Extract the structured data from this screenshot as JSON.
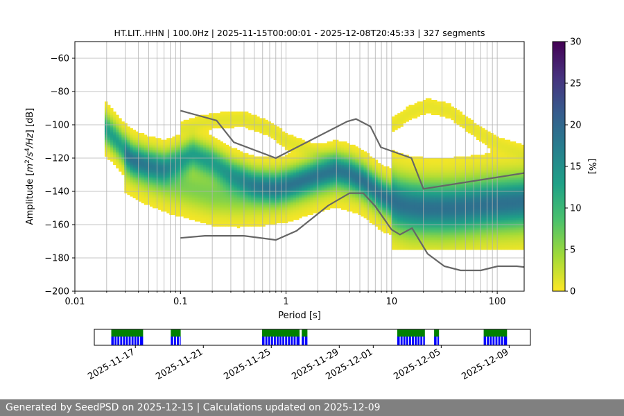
{
  "chart_data": [
    {
      "type": "heatmap",
      "title": "HT.LIT..HHN | 100.0Hz | 2025-11-15T00:00:01 - 2025-12-08T20:45:33 | 327 segments",
      "xlabel": "Period [s]",
      "ylabel_parts": [
        "Amplitude [",
        "m",
        "2",
        "/s",
        "4",
        "/Hz",
        "] [dB]"
      ],
      "x_scale": "log",
      "xlim": [
        0.01,
        180
      ],
      "ylim": [
        -200,
        -50
      ],
      "x_ticks": [
        {
          "value": 0.01,
          "label": "0.01"
        },
        {
          "value": 0.1,
          "label": "0.1"
        },
        {
          "value": 1,
          "label": "1"
        },
        {
          "value": 10,
          "label": "10"
        },
        {
          "value": 100,
          "label": "100"
        }
      ],
      "y_ticks": [
        {
          "value": -60,
          "label": "−60"
        },
        {
          "value": -80,
          "label": "−80"
        },
        {
          "value": -100,
          "label": "−100"
        },
        {
          "value": -120,
          "label": "−120"
        },
        {
          "value": -140,
          "label": "−140"
        },
        {
          "value": -160,
          "label": "−160"
        },
        {
          "value": -180,
          "label": "−180"
        },
        {
          "value": -200,
          "label": "−200"
        }
      ],
      "grid": "x-major-and-minor",
      "colorbar": {
        "label": "[%]",
        "range": [
          0,
          30
        ],
        "colormap": [
          "#fde725",
          "#a0da39",
          "#4ac16d",
          "#1fa187",
          "#277f8e",
          "#365c8d",
          "#46327e",
          "#440154"
        ],
        "ticks": [
          {
            "value": 0,
            "label": "0"
          },
          {
            "value": 5,
            "label": "5"
          },
          {
            "value": 10,
            "label": "10"
          },
          {
            "value": 15,
            "label": "15"
          },
          {
            "value": 20,
            "label": "20"
          },
          {
            "value": 25,
            "label": "25"
          },
          {
            "value": 30,
            "label": "30"
          }
        ]
      },
      "density_ridges": [
        {
          "name": "main",
          "points": [
            [
              0.019,
              -102
            ],
            [
              0.025,
              -110
            ],
            [
              0.035,
              -121
            ],
            [
              0.05,
              -124
            ],
            [
              0.07,
              -126
            ],
            [
              0.1,
              -122
            ],
            [
              0.13,
              -118
            ],
            [
              0.2,
              -123
            ],
            [
              0.3,
              -130
            ],
            [
              0.5,
              -136
            ],
            [
              0.8,
              -138
            ],
            [
              1.2,
              -135
            ],
            [
              2,
              -130
            ],
            [
              3,
              -127
            ],
            [
              4,
              -129
            ],
            [
              5.5,
              -134
            ],
            [
              8,
              -142
            ],
            [
              12,
              -148
            ],
            [
              20,
              -150
            ],
            [
              40,
              -150
            ],
            [
              80,
              -148
            ],
            [
              180,
              -146
            ]
          ]
        },
        {
          "name": "lower",
          "points": [
            [
              0.03,
              -122
            ],
            [
              0.05,
              -130
            ],
            [
              0.08,
              -135
            ],
            [
              0.12,
              -138
            ],
            [
              0.2,
              -142
            ],
            [
              0.35,
              -143
            ],
            [
              0.6,
              -142
            ],
            [
              1,
              -140
            ],
            [
              2,
              -134
            ],
            [
              3,
              -131
            ],
            [
              5,
              -135
            ],
            [
              8,
              -145
            ],
            [
              15,
              -152
            ],
            [
              30,
              -153
            ],
            [
              80,
              -150
            ],
            [
              180,
              -149
            ]
          ]
        },
        {
          "name": "upper",
          "points": [
            [
              0.1,
              -103
            ],
            [
              0.2,
              -98
            ],
            [
              0.4,
              -97
            ],
            [
              0.7,
              -103
            ],
            [
              1,
              -110
            ],
            [
              2,
              -118
            ],
            [
              3,
              -122
            ]
          ]
        },
        {
          "name": "high-period",
          "points": [
            [
              10,
              -101
            ],
            [
              15,
              -93
            ],
            [
              22,
              -89
            ],
            [
              35,
              -92
            ],
            [
              60,
              -103
            ],
            [
              100,
              -112
            ],
            [
              180,
              -118
            ]
          ]
        }
      ],
      "noise_models": [
        {
          "name": "high",
          "points": [
            [
              0.1,
              -91.5
            ],
            [
              0.22,
              -97.4
            ],
            [
              0.32,
              -110.5
            ],
            [
              0.8,
              -120
            ],
            [
              3.8,
              -98
            ],
            [
              4.6,
              -96.5
            ],
            [
              6.3,
              -101
            ],
            [
              7.9,
              -113.5
            ],
            [
              15.4,
              -120
            ],
            [
              20,
              -138.5
            ],
            [
              180,
              -129
            ]
          ]
        },
        {
          "name": "low",
          "points": [
            [
              0.1,
              -168
            ],
            [
              0.17,
              -166.7
            ],
            [
              0.4,
              -166.7
            ],
            [
              0.8,
              -169.2
            ],
            [
              1.26,
              -163.7
            ],
            [
              2.5,
              -148.6
            ],
            [
              4,
              -141.1
            ],
            [
              5.4,
              -141.1
            ],
            [
              7,
              -149
            ],
            [
              10,
              -163
            ],
            [
              12,
              -166
            ],
            [
              15.6,
              -162.1
            ],
            [
              21.9,
              -177.5
            ],
            [
              31.6,
              -185
            ],
            [
              45,
              -187.5
            ],
            [
              70,
              -187.5
            ],
            [
              101,
              -185
            ],
            [
              154,
              -185
            ],
            [
              180,
              -185.5
            ]
          ]
        }
      ]
    },
    {
      "type": "availability",
      "title": "",
      "x_ticks": [
        "2025-11-17",
        "2025-11-21",
        "2025-11-25",
        "2025-11-29",
        "2025-12-01",
        "2025-12-05",
        "2025-12-09"
      ],
      "x_tick_values": [
        "2025-11-17",
        "2025-11-21",
        "2025-11-25",
        "2025-11-29",
        "2025-12-01",
        "2025-12-05",
        "2025-12-09"
      ],
      "xlim": [
        "2025-11-14T14:00",
        "2025-12-10T06:00"
      ],
      "series": [
        {
          "color": "#008000",
          "spans": [
            [
              "2025-11-15T14:00",
              "2025-11-17T11:00"
            ],
            [
              "2025-11-19T02:00",
              "2025-11-19T16:00"
            ],
            [
              "2025-11-24T11:00",
              "2025-11-26T16:00"
            ],
            [
              "2025-11-26T19:00",
              "2025-11-27T03:00"
            ],
            [
              "2025-12-02T10:00",
              "2025-12-04T01:00"
            ],
            [
              "2025-12-04T14:00",
              "2025-12-04T21:00"
            ],
            [
              "2025-12-07T12:00",
              "2025-12-08T21:00"
            ]
          ]
        },
        {
          "color": "#0000ff",
          "spans": [
            [
              "2025-11-15T14:00",
              "2025-11-17T11:00"
            ],
            [
              "2025-11-19T02:00",
              "2025-11-19T16:00"
            ],
            [
              "2025-11-24T11:00",
              "2025-11-26T16:00"
            ],
            [
              "2025-11-26T19:00",
              "2025-11-27T03:00"
            ],
            [
              "2025-12-02T10:00",
              "2025-12-04T01:00"
            ],
            [
              "2025-12-04T14:00",
              "2025-12-04T21:00"
            ],
            [
              "2025-12-07T12:00",
              "2025-12-08T21:00"
            ]
          ]
        }
      ]
    }
  ],
  "footer": {
    "text": "Generated by SeedPSD on 2025-12-15 | Calculations updated on 2025-12-09"
  }
}
